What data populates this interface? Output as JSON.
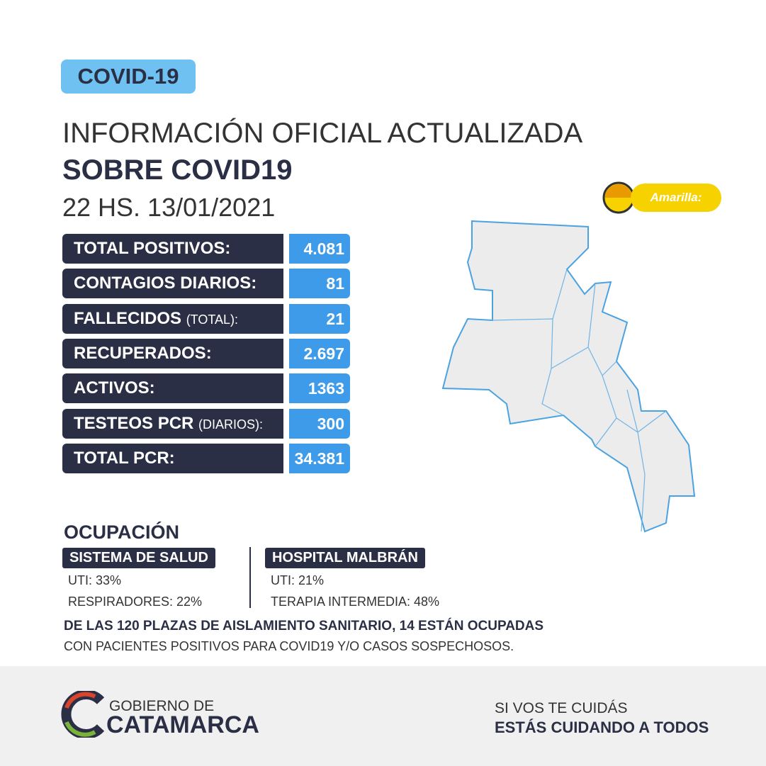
{
  "badge": "COVID-19",
  "header": {
    "line1": "INFORMACIÓN OFICIAL ACTUALIZADA",
    "line2": "SOBRE COVID19",
    "date": "22 HS. 13/01/2021"
  },
  "stats": [
    {
      "label": "TOTAL POSITIVOS:",
      "value": "4.081"
    },
    {
      "label": "CONTAGIOS DIARIOS:",
      "value": "81"
    },
    {
      "label": "FALLECIDOS",
      "note": "(TOTAL):",
      "value": "21"
    },
    {
      "label": "RECUPERADOS:",
      "value": "2.697"
    },
    {
      "label": "ACTIVOS:",
      "value": "1363"
    },
    {
      "label": "TESTEOS PCR",
      "note": "(DIARIOS):",
      "value": "300"
    },
    {
      "label": "TOTAL PCR:",
      "value": "34.381"
    }
  ],
  "map_legend": "Amarilla:",
  "occupation": {
    "title": "OCUPACIÓN",
    "sections": [
      {
        "title": "SISTEMA DE SALUD",
        "items": [
          "UTI: 33%",
          "RESPIRADORES: 22%"
        ]
      },
      {
        "title": "HOSPITAL MALBRÁN",
        "items": [
          "UTI: 21%",
          "TERAPIA INTERMEDIA: 48%"
        ]
      }
    ],
    "note_bold": "DE LAS 120 PLAZAS DE AISLAMIENTO SANITARIO, 14 ESTÁN OCUPADAS",
    "note": "CON PACIENTES POSITIVOS PARA COVID19 Y/O CASOS SOSPECHOSOS."
  },
  "footer": {
    "logo_top": "GOBIERNO DE",
    "logo_bottom": "CATAMARCA",
    "slogan1": "SI VOS TE CUIDÁS",
    "slogan2": "ESTÁS CUIDANDO A TODOS"
  }
}
